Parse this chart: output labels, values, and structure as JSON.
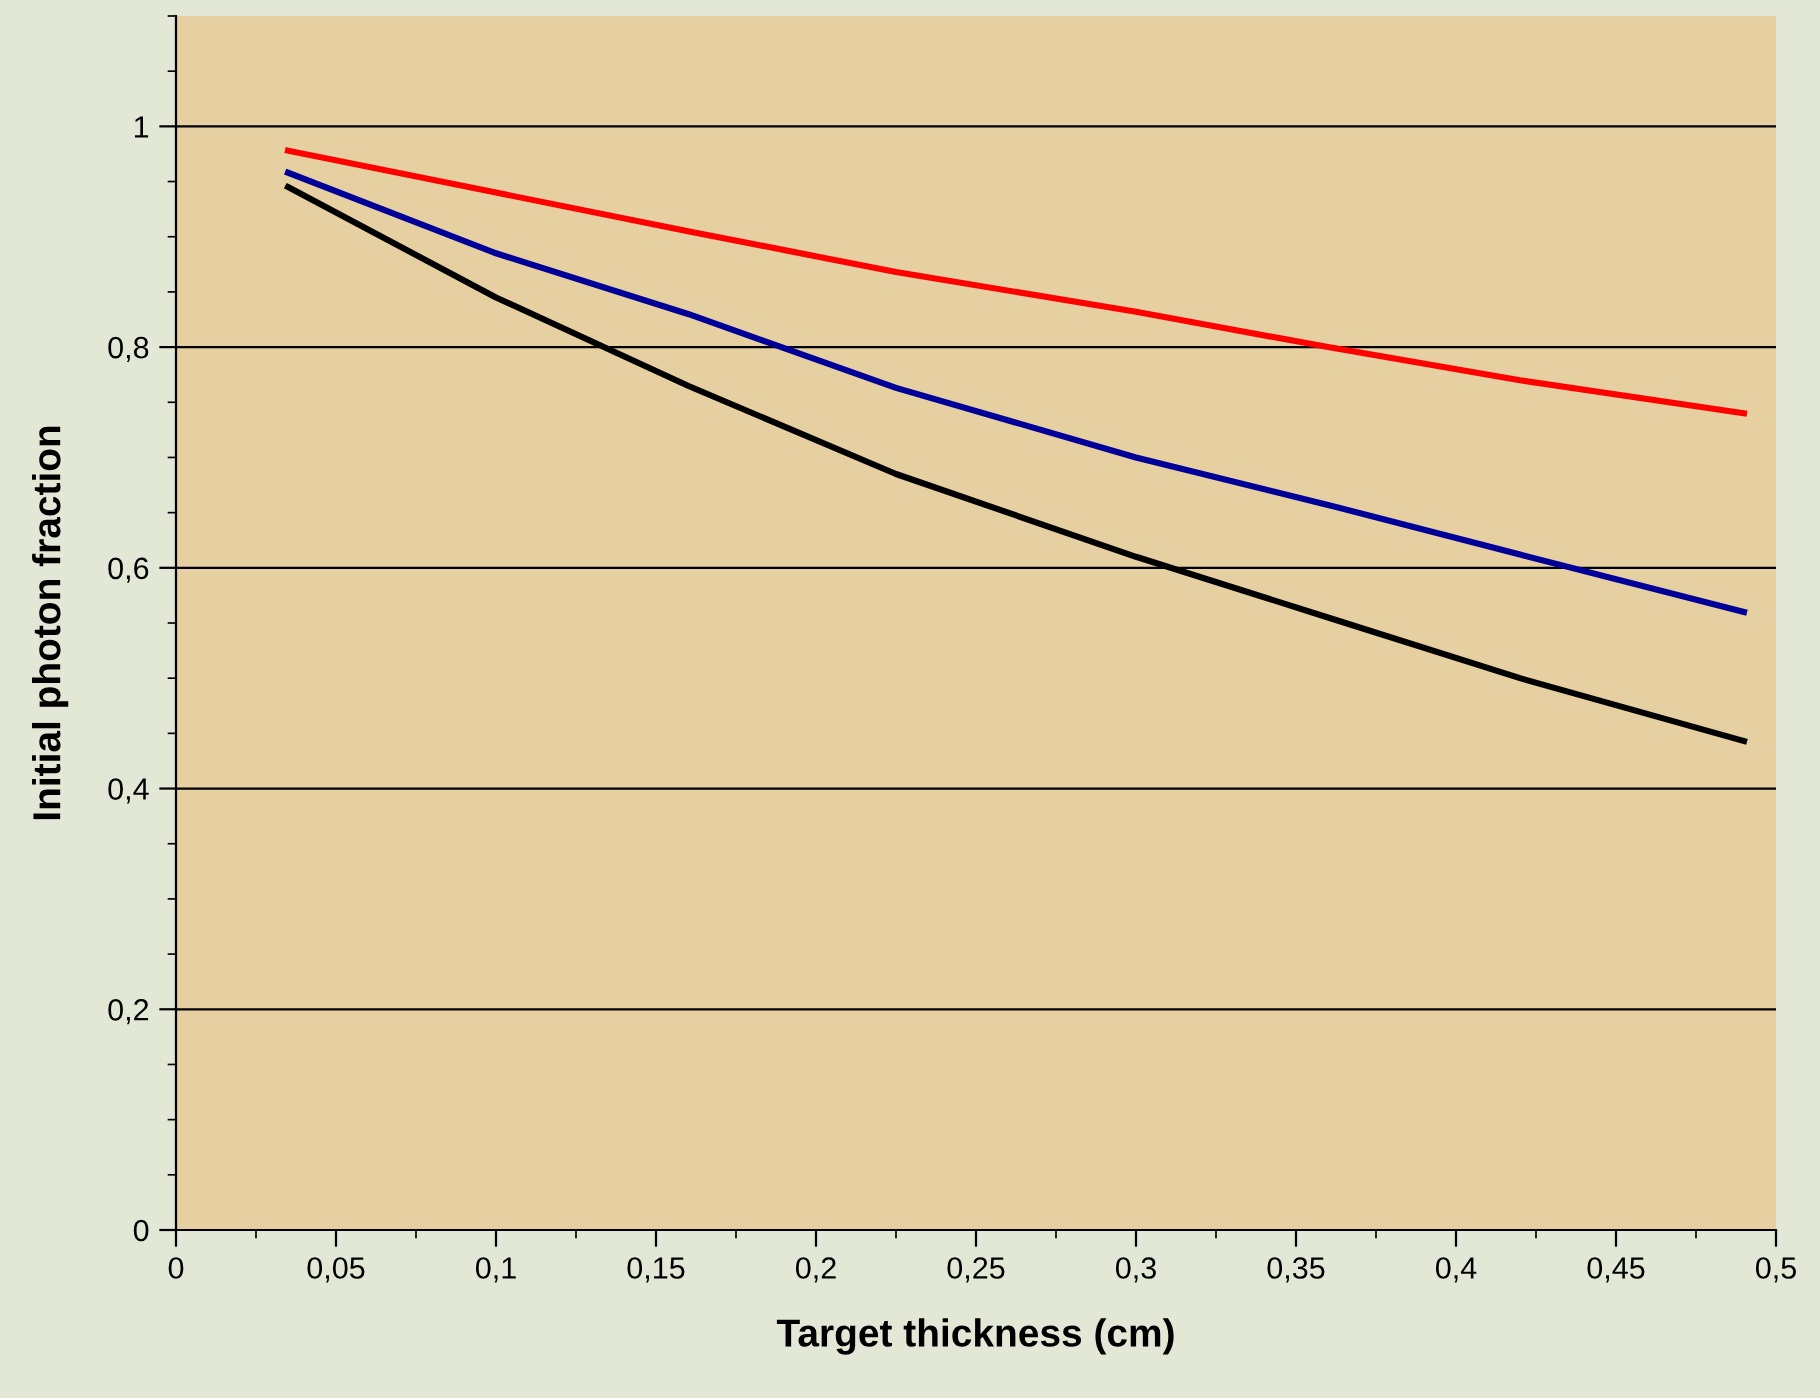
{
  "chart_data": {
    "type": "line",
    "xlabel": "Target thickness (cm)",
    "ylabel": "Initial photon fraction",
    "xlim": [
      0,
      0.5
    ],
    "ylim": [
      0,
      1.1
    ],
    "xticks": [
      0,
      {
        "value": 0.05,
        "label": "0,05"
      },
      {
        "value": 0.1,
        "label": "0,1"
      },
      {
        "value": 0.15,
        "label": "0,15"
      },
      {
        "value": 0.2,
        "label": "0,2"
      },
      {
        "value": 0.25,
        "label": "0,25"
      },
      {
        "value": 0.3,
        "label": "0,3"
      },
      {
        "value": 0.35,
        "label": "0,35"
      },
      {
        "value": 0.4,
        "label": "0,4"
      },
      {
        "value": 0.45,
        "label": "0,45"
      },
      {
        "value": 0.5,
        "label": "0,5"
      }
    ],
    "yticks": [
      0,
      {
        "value": 0.2,
        "label": "0,2"
      },
      {
        "value": 0.4,
        "label": "0,4"
      },
      {
        "value": 0.6,
        "label": "0,6"
      },
      {
        "value": 0.8,
        "label": "0,8"
      },
      1
    ],
    "grid": "y",
    "marker": "none",
    "line_style": "solid",
    "x": [
      0.035,
      0.1,
      0.16,
      0.225,
      0.3,
      0.36,
      0.42,
      0.49
    ],
    "series": [
      {
        "color": "#ff0000",
        "values": [
          0.978,
          0.94,
          0.905,
          0.868,
          0.832,
          0.8,
          0.77,
          0.74
        ]
      },
      {
        "color": "#000099",
        "values": [
          0.958,
          0.885,
          0.83,
          0.763,
          0.7,
          0.657,
          0.612,
          0.56
        ]
      },
      {
        "color": "#000000",
        "values": [
          0.945,
          0.845,
          0.765,
          0.685,
          0.61,
          0.555,
          0.5,
          0.443
        ]
      }
    ]
  }
}
